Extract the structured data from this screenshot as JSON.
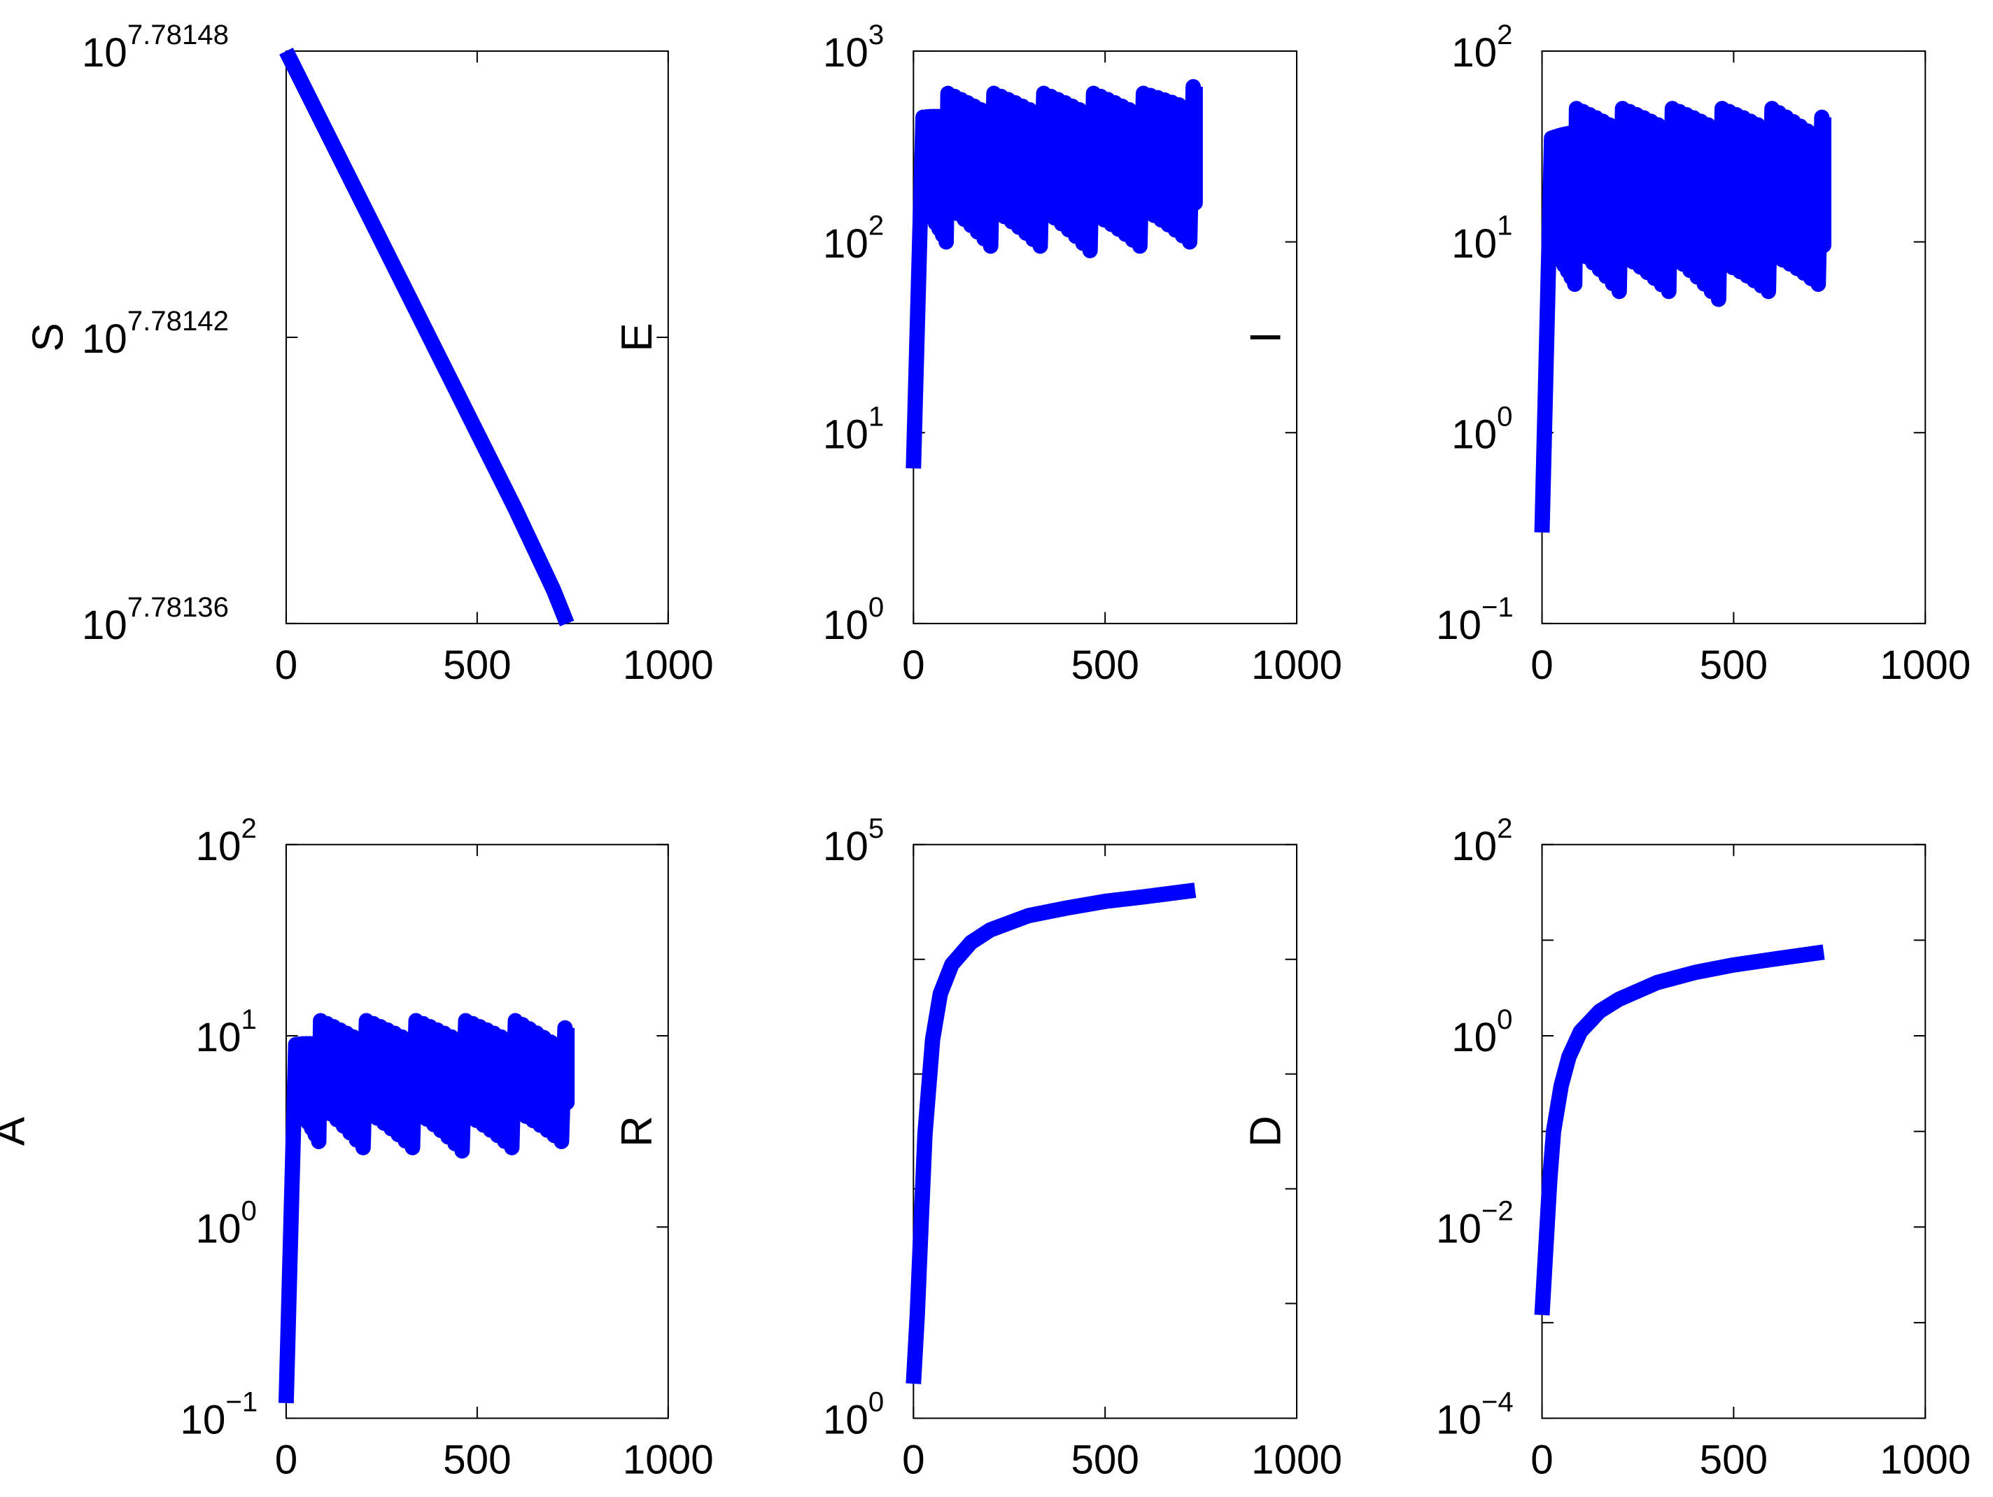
{
  "chart_data": [
    {
      "type": "line",
      "ylabel": "S",
      "yscale": "log",
      "xlim": [
        0,
        1000
      ],
      "xticks": [
        "0",
        "500",
        "1000"
      ],
      "ylim_exp": [
        7.78136,
        7.78148
      ],
      "yticks": [
        {
          "exp": 7.78136,
          "label": "7.78136"
        },
        {
          "exp": 7.78142,
          "label": "7.78142"
        },
        {
          "exp": 7.78148,
          "label": "7.78148"
        }
      ],
      "color": "#0000ff",
      "series": [
        {
          "pattern": "decline",
          "x": [
            0,
            100,
            200,
            300,
            400,
            500,
            600,
            700,
            735
          ],
          "y_exp": [
            7.78148,
            7.781464,
            7.781448,
            7.781432,
            7.781416,
            7.7814,
            7.781384,
            7.781367,
            7.78136
          ]
        }
      ]
    },
    {
      "type": "line",
      "ylabel": "E",
      "yscale": "log",
      "xlim": [
        0,
        1000
      ],
      "xticks": [
        "0",
        "500",
        "1000"
      ],
      "ylim_exp": [
        0,
        3
      ],
      "yticks": [
        {
          "exp": 0,
          "label": "0"
        },
        {
          "exp": 1,
          "label": "1"
        },
        {
          "exp": 2,
          "label": "2"
        },
        {
          "exp": 3,
          "label": "3"
        }
      ],
      "color": "#0000ff",
      "series": [
        {
          "pattern": "oscillating",
          "x_start": 0,
          "start_value": 6.5,
          "x_end": 735,
          "peaks_x": [
            25,
            90,
            210,
            340,
            470,
            600,
            730
          ],
          "peaks_y": [
            450,
            600,
            600,
            600,
            600,
            600,
            650
          ],
          "troughs_y": [
            100,
            100,
            95,
            95,
            90,
            95,
            100
          ]
        }
      ]
    },
    {
      "type": "line",
      "ylabel": "I",
      "yscale": "log",
      "xlim": [
        0,
        1000
      ],
      "xticks": [
        "0",
        "500",
        "1000"
      ],
      "ylim_exp": [
        -1,
        2
      ],
      "yticks": [
        {
          "exp": -1,
          "label": "−1"
        },
        {
          "exp": 0,
          "label": "0"
        },
        {
          "exp": 1,
          "label": "1"
        },
        {
          "exp": 2,
          "label": "2"
        }
      ],
      "color": "#0000ff",
      "series": [
        {
          "pattern": "oscillating",
          "x_start": 0,
          "start_value": 0.3,
          "x_end": 735,
          "peaks_x": [
            25,
            90,
            210,
            340,
            470,
            600,
            730
          ],
          "peaks_y": [
            35,
            50,
            50,
            50,
            50,
            50,
            45
          ],
          "troughs_y": [
            6,
            6,
            5.5,
            5.5,
            5,
            5.5,
            6
          ]
        }
      ]
    },
    {
      "type": "line",
      "ylabel": "A",
      "yscale": "log",
      "xlim": [
        0,
        1000
      ],
      "xticks": [
        "0",
        "500",
        "1000"
      ],
      "ylim_exp": [
        -1,
        2
      ],
      "yticks": [
        {
          "exp": -1,
          "label": "−1"
        },
        {
          "exp": 0,
          "label": "0"
        },
        {
          "exp": 1,
          "label": "1"
        },
        {
          "exp": 2,
          "label": "2"
        }
      ],
      "color": "#0000ff",
      "series": [
        {
          "pattern": "oscillating",
          "x_start": 0,
          "start_value": 0.12,
          "x_end": 735,
          "peaks_x": [
            25,
            90,
            210,
            340,
            470,
            600,
            730
          ],
          "peaks_y": [
            9,
            12,
            12,
            12,
            12,
            12,
            11
          ],
          "troughs_y": [
            2.8,
            2.8,
            2.6,
            2.6,
            2.5,
            2.6,
            2.8
          ]
        }
      ]
    },
    {
      "type": "line",
      "ylabel": "R",
      "yscale": "log",
      "xlim": [
        0,
        1000
      ],
      "xticks": [
        "0",
        "500",
        "1000"
      ],
      "ylim_exp": [
        0,
        5
      ],
      "yticks": [
        {
          "exp": 0,
          "label": "0"
        },
        {
          "exp": 5,
          "label": "5"
        }
      ],
      "color": "#0000ff",
      "series": [
        {
          "pattern": "curve",
          "x": [
            0,
            10,
            20,
            30,
            50,
            70,
            100,
            150,
            200,
            300,
            400,
            500,
            600,
            735
          ],
          "y": [
            2,
            8,
            50,
            300,
            2000,
            5000,
            9000,
            14000,
            18000,
            24000,
            28000,
            32000,
            35000,
            40000
          ]
        }
      ]
    },
    {
      "type": "line",
      "ylabel": "D",
      "yscale": "log",
      "xlim": [
        0,
        1000
      ],
      "xticks": [
        "0",
        "500",
        "1000"
      ],
      "ylim_exp": [
        -4,
        2
      ],
      "yticks": [
        {
          "exp": -4,
          "label": "−4"
        },
        {
          "exp": -2,
          "label": "−2"
        },
        {
          "exp": 0,
          "label": "0"
        },
        {
          "exp": 2,
          "label": "2"
        }
      ],
      "color": "#0000ff",
      "series": [
        {
          "pattern": "curve",
          "x": [
            0,
            10,
            20,
            30,
            50,
            70,
            100,
            150,
            200,
            300,
            400,
            500,
            600,
            735
          ],
          "y": [
            0.0012,
            0.006,
            0.03,
            0.1,
            0.3,
            0.6,
            1.1,
            1.8,
            2.4,
            3.6,
            4.6,
            5.5,
            6.3,
            7.5
          ]
        }
      ]
    }
  ]
}
